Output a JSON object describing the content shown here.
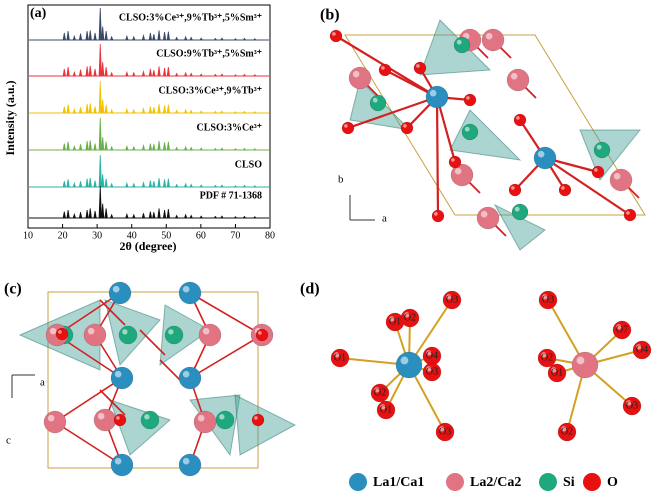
{
  "chart_data": {
    "type": "stick",
    "panel_label": "(a)",
    "xlabel": "2θ (degree)",
    "ylabel": "Intensity (a.u.)",
    "xlim": [
      10,
      80
    ],
    "xticks": [
      10,
      20,
      30,
      40,
      50,
      60,
      70,
      80
    ],
    "x": [
      20.5,
      21.6,
      23.4,
      25.2,
      27.1,
      28.0,
      29.4,
      30.9,
      31.6,
      32.6,
      34.2,
      38.6,
      40.6,
      43.4,
      45.4,
      46.4,
      47.9,
      49.5,
      50.6,
      53.0,
      55.6,
      57.2,
      60.1,
      64.2,
      66.1,
      70.0,
      72.6,
      75.6
    ],
    "series": [
      {
        "name": "CLSO:3%Ce³⁺,9%Tb³⁺,5%Sm³⁺",
        "color": "#3b4868",
        "values": [
          0.22,
          0.28,
          0.12,
          0.2,
          0.28,
          0.3,
          0.22,
          1.0,
          0.42,
          0.28,
          0.1,
          0.12,
          0.1,
          0.14,
          0.22,
          0.18,
          0.3,
          0.25,
          0.26,
          0.08,
          0.1,
          0.08,
          0.06,
          0.05,
          0.06,
          0.04,
          0.05,
          0.04
        ]
      },
      {
        "name": "CLSO:9%Tb³⁺,5%Sm³⁺",
        "color": "#e8343a",
        "values": [
          0.22,
          0.28,
          0.12,
          0.2,
          0.3,
          0.32,
          0.22,
          1.0,
          0.44,
          0.28,
          0.1,
          0.12,
          0.1,
          0.14,
          0.22,
          0.18,
          0.3,
          0.25,
          0.28,
          0.08,
          0.1,
          0.08,
          0.06,
          0.05,
          0.06,
          0.04,
          0.05,
          0.04
        ]
      },
      {
        "name": "CLSO:3%Ce³⁺,9%Tb³⁺",
        "color": "#f2c200",
        "values": [
          0.2,
          0.26,
          0.12,
          0.18,
          0.28,
          0.3,
          0.2,
          1.0,
          0.42,
          0.26,
          0.1,
          0.12,
          0.1,
          0.14,
          0.2,
          0.18,
          0.28,
          0.24,
          0.26,
          0.08,
          0.1,
          0.08,
          0.06,
          0.05,
          0.06,
          0.04,
          0.05,
          0.04
        ]
      },
      {
        "name": "CLSO:3%Ce³⁺",
        "color": "#6ab04c",
        "values": [
          0.2,
          0.26,
          0.12,
          0.18,
          0.28,
          0.3,
          0.2,
          1.0,
          0.4,
          0.26,
          0.1,
          0.12,
          0.1,
          0.14,
          0.2,
          0.18,
          0.28,
          0.24,
          0.26,
          0.08,
          0.1,
          0.08,
          0.06,
          0.05,
          0.06,
          0.04,
          0.05,
          0.04
        ]
      },
      {
        "name": "CLSO",
        "color": "#2bb3a3",
        "values": [
          0.18,
          0.24,
          0.12,
          0.18,
          0.26,
          0.28,
          0.2,
          1.0,
          0.4,
          0.26,
          0.1,
          0.12,
          0.1,
          0.14,
          0.2,
          0.18,
          0.28,
          0.24,
          0.26,
          0.08,
          0.1,
          0.08,
          0.06,
          0.05,
          0.06,
          0.04,
          0.05,
          0.04
        ]
      },
      {
        "name": "PDF # 71-1368",
        "color": "#111111",
        "values": [
          0.2,
          0.25,
          0.12,
          0.18,
          0.25,
          0.3,
          0.22,
          1.0,
          0.45,
          0.3,
          0.1,
          0.12,
          0.1,
          0.15,
          0.2,
          0.18,
          0.3,
          0.25,
          0.28,
          0.08,
          0.1,
          0.08,
          0.06,
          0.05,
          0.06,
          0.04,
          0.05,
          0.04
        ]
      }
    ]
  },
  "panels": {
    "b": {
      "label": "(b)",
      "axis_up": "b",
      "axis_right": "a"
    },
    "c": {
      "label": "(c)",
      "axis_right": "a",
      "axis_down": "c"
    },
    "d": {
      "label": "(d)",
      "left_labels": [
        "O3",
        "O1",
        "O2",
        "O1",
        "O4",
        "O3",
        "O2",
        "O1",
        "O3"
      ],
      "right_labels": [
        "O3",
        "O7",
        "O2",
        "O4",
        "O1",
        "O3",
        "O2"
      ]
    }
  },
  "legend": [
    "La1/Ca1",
    "La2/Ca2",
    "Si",
    "O"
  ]
}
